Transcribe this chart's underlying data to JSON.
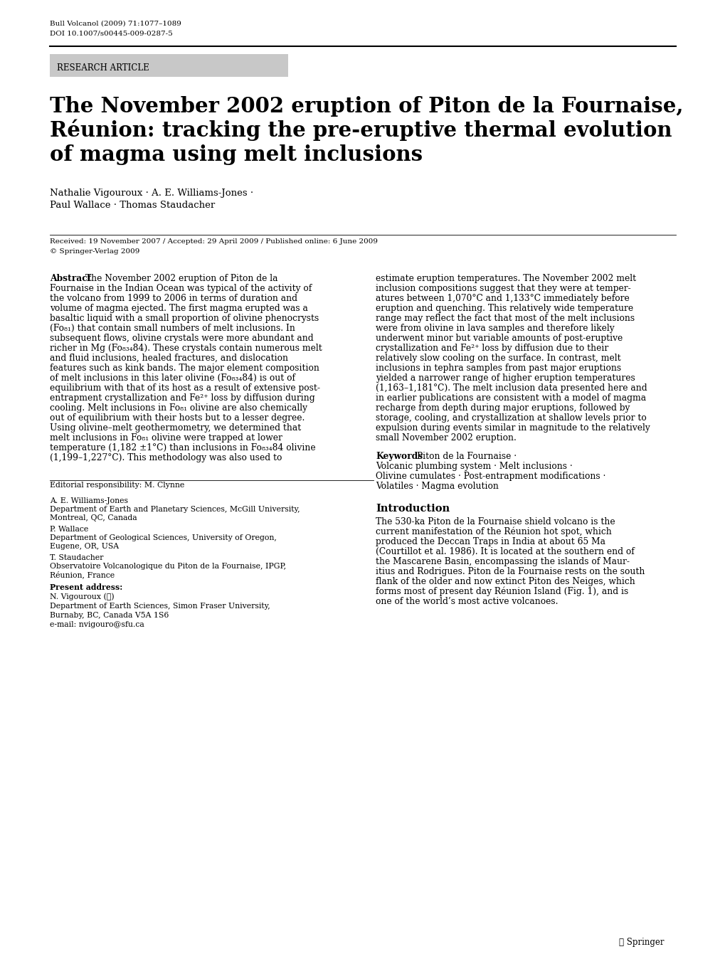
{
  "bg_color": "#ffffff",
  "journal_line1": "Bull Volcanol (2009) 71:1077–1089",
  "journal_line2": "DOI 10.1007/s00445-009-0287-5",
  "research_article_label": "RESEARCH ARTICLE",
  "research_article_bg": "#c8c8c8",
  "title_line1": "The November 2002 eruption of Piton de la Fournaise,",
  "title_line2": "Réunion: tracking the pre-eruptive thermal evolution",
  "title_line3": "of magma using melt inclusions",
  "authors_line1": "Nathalie Vigouroux · A. E. Williams-Jones ·",
  "authors_line2": "Paul Wallace · Thomas Staudacher",
  "received_line": "Received: 19 November 2007 / Accepted: 29 April 2009 / Published online: 6 June 2009",
  "copyright_line": "© Springer-Verlag 2009",
  "abstract_bold": "Abstract",
  "abstract_left_first": "The November 2002 eruption of Piton de la",
  "abstract_left_rest": [
    "Fournaise in the Indian Ocean was typical of the activity of",
    "the volcano from 1999 to 2006 in terms of duration and",
    "volume of magma ejected. The first magma erupted was a",
    "basaltic liquid with a small proportion of olivine phenocrysts",
    "(Fo₈₁) that contain small numbers of melt inclusions. In",
    "subsequent flows, olivine crystals were more abundant and",
    "richer in Mg (Fo₈₃₄84). These crystals contain numerous melt",
    "and fluid inclusions, healed fractures, and dislocation",
    "features such as kink bands. The major element composition",
    "of melt inclusions in this later olivine (Fo₈₃₄84) is out of",
    "equilibrium with that of its host as a result of extensive post-",
    "entrapment crystallization and Fe²⁺ loss by diffusion during",
    "cooling. Melt inclusions in Fo₈₁ olivine are also chemically",
    "out of equilibrium with their hosts but to a lesser degree.",
    "Using olivine–melt geothermometry, we determined that",
    "melt inclusions in Fo₈₁ olivine were trapped at lower",
    "temperature (1,182 ±1°C) than inclusions in Fo₈₃₄84 olivine",
    "(1,199–1,227°C). This methodology was also used to"
  ],
  "abstract_right_lines": [
    "estimate eruption temperatures. The November 2002 melt",
    "inclusion compositions suggest that they were at temper-",
    "atures between 1,070°C and 1,133°C immediately before",
    "eruption and quenching. This relatively wide temperature",
    "range may reflect the fact that most of the melt inclusions",
    "were from olivine in lava samples and therefore likely",
    "underwent minor but variable amounts of post-eruptive",
    "crystallization and Fe²⁺ loss by diffusion due to their",
    "relatively slow cooling on the surface. In contrast, melt",
    "inclusions in tephra samples from past major eruptions",
    "yielded a narrower range of higher eruption temperatures",
    "(1,163–1,181°C). The melt inclusion data presented here and",
    "in earlier publications are consistent with a model of magma",
    "recharge from depth during major eruptions, followed by",
    "storage, cooling, and crystallization at shallow levels prior to",
    "expulsion during events similar in magnitude to the relatively",
    "small November 2002 eruption."
  ],
  "keywords_bold": "Keywords",
  "keywords_first": "Piton de la Fournaise ·",
  "keywords_rest": [
    "Volcanic plumbing system · Melt inclusions ·",
    "Olivine cumulates · Post-entrapment modifications ·",
    "Volatiles · Magma evolution"
  ],
  "intro_bold": "Introduction",
  "intro_lines": [
    "The 530-ka Piton de la Fournaise shield volcano is the",
    "current manifestation of the Réunion hot spot, which",
    "produced the Deccan Traps in India at about 65 Ma",
    "(Courtillot et al. 1986). It is located at the southern end of",
    "the Mascarene Basin, encompassing the islands of Maur-",
    "itius and Rodrigues. Piton de la Fournaise rests on the south",
    "flank of the older and now extinct Piton des Neiges, which",
    "forms most of present day Réunion Island (Fig. 1), and is",
    "one of the world’s most active volcanoes."
  ],
  "editorial_line": "Editorial responsibility: M. Clynne",
  "affil1_name": "A. E. Williams-Jones",
  "affil1_dept": "Department of Earth and Planetary Sciences, McGill University,",
  "affil1_loc": "Montreal, QC, Canada",
  "affil2_name": "P. Wallace",
  "affil2_dept": "Department of Geological Sciences, University of Oregon,",
  "affil2_loc": "Eugene, OR, USA",
  "affil3_name": "T. Staudacher",
  "affil3_dept": "Observatoire Volcanologique du Piton de la Fournaise, IPGP,",
  "affil3_loc": "Réunion, France",
  "present_bold": "Present address:",
  "present_name": "N. Vigouroux (✉)",
  "present_dept": "Department of Earth Sciences, Simon Fraser University,",
  "present_loc": "Burnaby, BC, Canada V5A 1S6",
  "present_email": "e-mail: nvigouro@sfu.ca",
  "springer_logo": "Ⓢ Springer"
}
